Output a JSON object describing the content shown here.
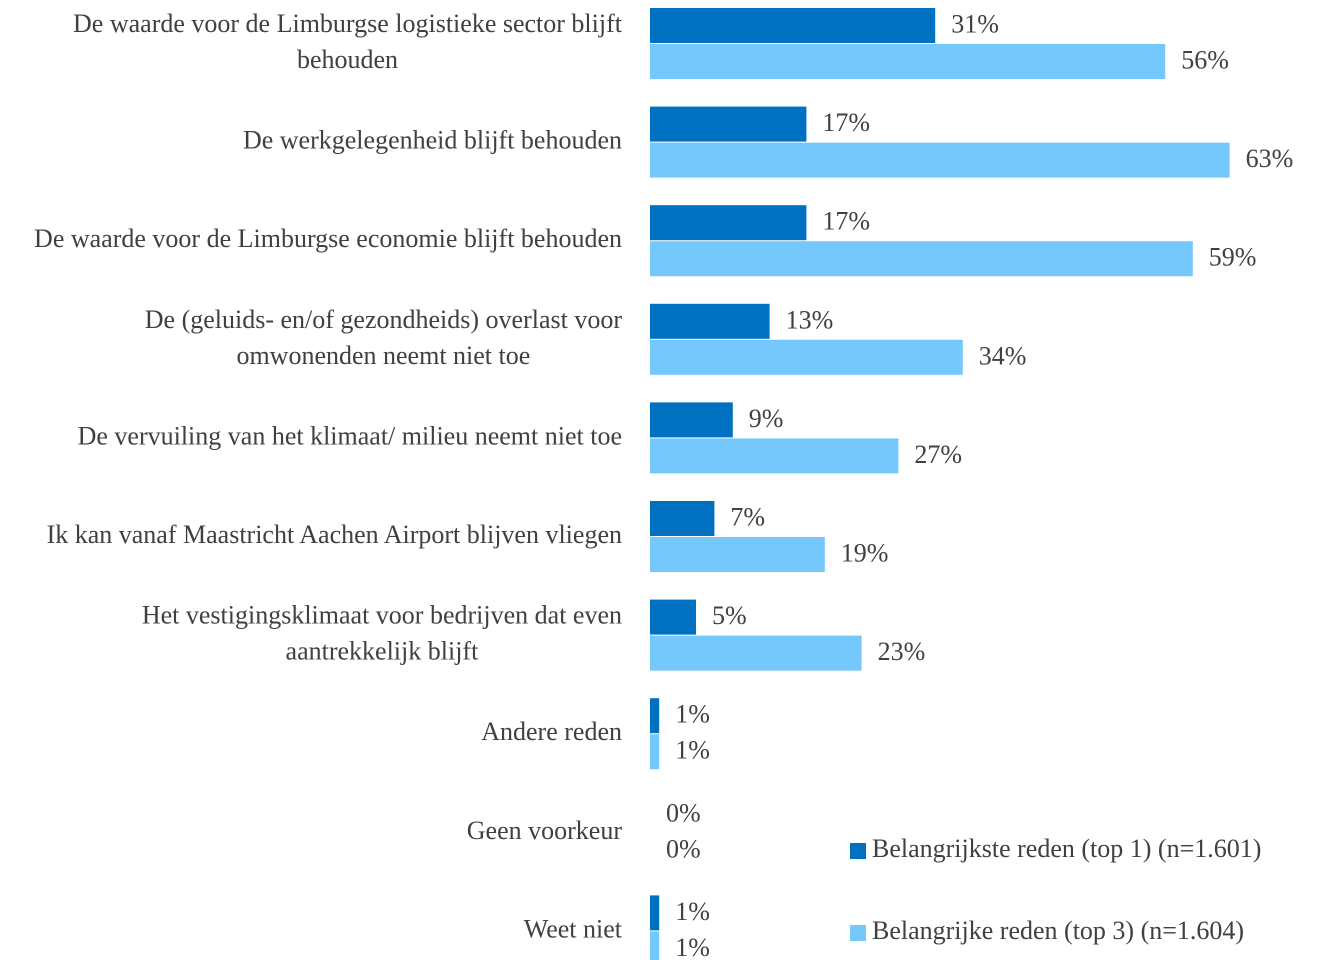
{
  "chart_data": {
    "type": "bar",
    "orientation": "horizontal",
    "categories": [
      "De waarde voor de Limburgse logistieke sector blijft behouden",
      "De werkgelegenheid blijft behouden",
      "De waarde voor de Limburgse economie blijft behouden",
      "De (geluids- en/of gezondheids) overlast voor omwonenden neemt niet toe",
      "De vervuiling van het klimaat/ milieu neemt niet toe",
      "Ik kan vanaf Maastricht Aachen Airport blijven vliegen",
      "Het vestigingsklimaat voor bedrijven dat even aantrekkelijk blijft",
      "Andere reden",
      "Geen voorkeur",
      "Weet niet"
    ],
    "series": [
      {
        "name": "Belangrijkste reden (top 1) (n=1.601)",
        "color": "#0070c0",
        "values": [
          31,
          17,
          17,
          13,
          9,
          7,
          5,
          1,
          0,
          1
        ],
        "value_labels": [
          "31%",
          "17%",
          "17%",
          "13%",
          "9%",
          "7%",
          "5%",
          "1%",
          "0%",
          "1%"
        ]
      },
      {
        "name": "Belangrijke reden (top 3) (n=1.604)",
        "color": "#75c8fb",
        "values": [
          56,
          63,
          59,
          34,
          27,
          19,
          23,
          1,
          0,
          1
        ],
        "value_labels": [
          "56%",
          "63%",
          "59%",
          "34%",
          "27%",
          "19%",
          "23%",
          "1%",
          "0%",
          "1%"
        ]
      }
    ],
    "legend": "lower right"
  }
}
